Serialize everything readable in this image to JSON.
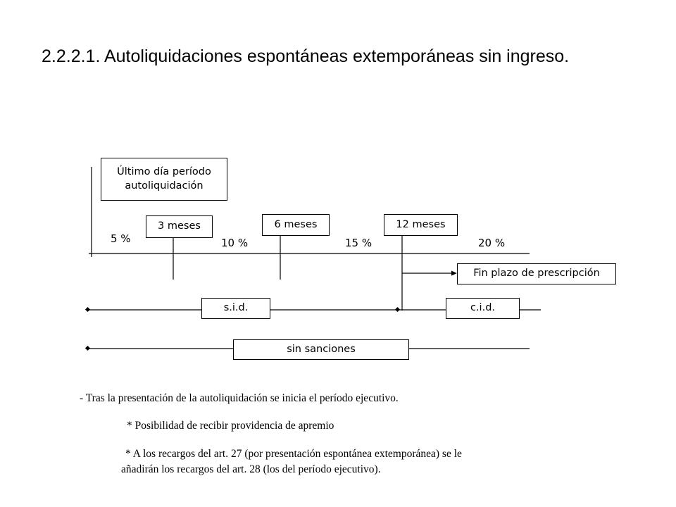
{
  "title": "2.2.2.1. Autoliquidaciones espontáneas extemporáneas sin ingreso.",
  "diagram": {
    "start_box": [
      "Último día período",
      "autoliquidación"
    ],
    "markers": [
      "3 meses",
      "6 meses",
      "12 meses"
    ],
    "percentages": [
      "5 %",
      "10 %",
      "15 %",
      "20 %"
    ],
    "end_box": "Fin plazo de prescripción",
    "line_sid": "s.i.d.",
    "line_cid": "c.i.d.",
    "line_sin_sanciones": "sin sanciones"
  },
  "notes": {
    "line1": "- Tras la presentación de la autoliquidación se inicia el período ejecutivo.",
    "line2": "* Posibilidad de recibir providencia de apremio",
    "line3a": "* A los recargos del art. 27 (por presentación espontánea extemporánea) se le",
    "line3b": "añadirán los recargos del art. 28 (los del período ejecutivo)."
  }
}
